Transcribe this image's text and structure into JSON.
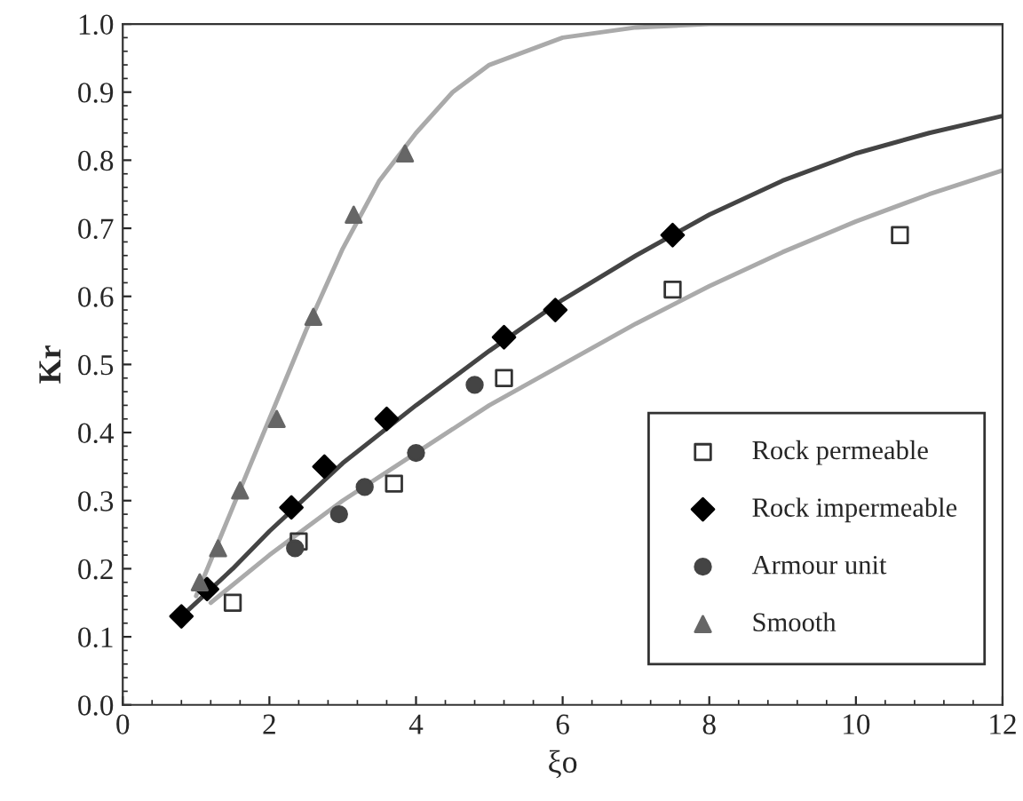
{
  "chart_data": {
    "type": "scatter",
    "xlabel": "ξo",
    "ylabel": "Kr",
    "xlim": [
      0,
      12
    ],
    "ylim": [
      0,
      1.0
    ],
    "xticks": [
      0,
      2,
      4,
      6,
      8,
      10,
      12
    ],
    "yticks": [
      {
        "value": 0,
        "label": "0.0"
      },
      {
        "value": 0.1,
        "label": "0.1"
      },
      {
        "value": 0.2,
        "label": "0.2"
      },
      {
        "value": 0.3,
        "label": "0.3"
      },
      {
        "value": 0.4,
        "label": "0.4"
      },
      {
        "value": 0.5,
        "label": "0.5"
      },
      {
        "value": 0.6,
        "label": "0.6"
      },
      {
        "value": 0.7,
        "label": "0.7"
      },
      {
        "value": 0.8,
        "label": "0.8"
      },
      {
        "value": 0.9,
        "label": "0.9"
      },
      {
        "value": 1.0,
        "label": "1.0"
      }
    ],
    "grid": false,
    "legend": "bottom right",
    "series": [
      {
        "type": "line",
        "color": "#aaaaaa",
        "marker": "none",
        "x": [
          1.0,
          1.5,
          2,
          2.5,
          3,
          3.5,
          4,
          4.5,
          5,
          6,
          7,
          8,
          12
        ],
        "values": [
          0.16,
          0.29,
          0.42,
          0.55,
          0.67,
          0.77,
          0.84,
          0.9,
          0.94,
          0.98,
          0.995,
          1.0,
          1.0
        ]
      },
      {
        "type": "line",
        "color": "#444444",
        "marker": "none",
        "x": [
          0.8,
          1.5,
          2,
          3,
          4,
          5,
          6,
          7,
          8,
          9,
          10,
          11,
          12
        ],
        "values": [
          0.13,
          0.2,
          0.255,
          0.355,
          0.44,
          0.52,
          0.595,
          0.66,
          0.72,
          0.77,
          0.81,
          0.84,
          0.865
        ]
      },
      {
        "type": "line",
        "color": "#aaaaaa",
        "marker": "none",
        "x": [
          1.2,
          2,
          3,
          4,
          5,
          6,
          7,
          8,
          9,
          10,
          11,
          12
        ],
        "values": [
          0.15,
          0.22,
          0.3,
          0.37,
          0.44,
          0.5,
          0.56,
          0.615,
          0.665,
          0.71,
          0.75,
          0.785
        ]
      },
      {
        "name": "Rock permeable",
        "color": "#333333",
        "marker": "square",
        "x": [
          1.5,
          2.4,
          3.7,
          5.2,
          7.5,
          10.6
        ],
        "values": [
          0.15,
          0.24,
          0.325,
          0.48,
          0.61,
          0.69
        ]
      },
      {
        "name": "Rock impermeable",
        "color": "#000000",
        "marker": "diamond",
        "x": [
          0.8,
          1.15,
          2.3,
          2.75,
          3.6,
          5.2,
          5.9,
          7.5
        ],
        "values": [
          0.13,
          0.17,
          0.29,
          0.35,
          0.42,
          0.54,
          0.58,
          0.69
        ]
      },
      {
        "name": "Armour unit",
        "color": "#444444",
        "marker": "circle",
        "x": [
          2.35,
          2.95,
          3.3,
          4.0,
          4.8
        ],
        "values": [
          0.23,
          0.28,
          0.32,
          0.37,
          0.47
        ]
      },
      {
        "name": "Smooth",
        "color": "#666666",
        "marker": "triangle",
        "x": [
          1.05,
          1.3,
          1.6,
          2.1,
          2.6,
          3.15,
          3.85
        ],
        "values": [
          0.18,
          0.23,
          0.315,
          0.42,
          0.57,
          0.72,
          0.81
        ]
      }
    ]
  }
}
